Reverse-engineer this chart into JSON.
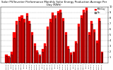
{
  "title": "Solar PV/Inverter Performance Monthly Solar Energy Production Average Per Day (KWh)",
  "bar_groups": [
    {
      "month": "Nov 08",
      "red": 1.5,
      "black": 1.2
    },
    {
      "month": "Dec 08",
      "red": 1.2,
      "black": 0.9
    },
    {
      "month": "Jan 09",
      "red": 2.0,
      "black": 1.5
    },
    {
      "month": "Feb 09",
      "red": 5.5,
      "black": 4.5
    },
    {
      "month": "Mar 09",
      "red": 7.5,
      "black": 6.8
    },
    {
      "month": "Apr 09",
      "red": 8.2,
      "black": 7.5
    },
    {
      "month": "May 09",
      "red": 8.5,
      "black": 8.0
    },
    {
      "month": "Jun 09",
      "red": 7.8,
      "black": 7.2
    },
    {
      "month": "Jul 09",
      "red": 8.8,
      "black": 8.3
    },
    {
      "month": "Aug 09",
      "red": 7.5,
      "black": 7.0
    },
    {
      "month": "Sep 09",
      "red": 5.5,
      "black": 5.0
    },
    {
      "month": "Oct 09",
      "red": 3.5,
      "black": 3.0
    },
    {
      "month": "Nov 09",
      "red": 2.2,
      "black": 1.8
    },
    {
      "month": "Dec 09",
      "red": 1.5,
      "black": 1.2
    },
    {
      "month": "Jan 10",
      "red": 2.5,
      "black": 2.0
    },
    {
      "month": "Feb 10",
      "red": 3.5,
      "black": 3.0
    },
    {
      "month": "Mar 10",
      "red": 6.5,
      "black": 6.0
    },
    {
      "month": "Apr 10",
      "red": 7.8,
      "black": 7.2
    },
    {
      "month": "May 10",
      "red": 9.0,
      "black": 8.5
    },
    {
      "month": "Jun 10",
      "red": 8.5,
      "black": 8.0
    },
    {
      "month": "Jul 10",
      "red": 9.2,
      "black": 8.8
    },
    {
      "month": "Aug 10",
      "red": 9.5,
      "black": 9.0
    },
    {
      "month": "Sep 10",
      "red": 8.0,
      "black": 7.5
    },
    {
      "month": "Oct 10",
      "red": 5.5,
      "black": 5.0
    },
    {
      "month": "Nov 10",
      "red": 3.0,
      "black": 2.5
    },
    {
      "month": "Dec 10",
      "red": 1.8,
      "black": 1.5
    },
    {
      "month": "Jan 11",
      "red": 2.0,
      "black": 1.8
    },
    {
      "month": "Feb 11",
      "red": 3.8,
      "black": 3.5
    },
    {
      "month": "Mar 11",
      "red": 7.0,
      "black": 6.5
    },
    {
      "month": "Apr 11",
      "red": 8.5,
      "black": 8.0
    },
    {
      "month": "May 11",
      "red": 9.5,
      "black": 9.0
    },
    {
      "month": "Jun 11",
      "red": 9.8,
      "black": 9.3
    },
    {
      "month": "Jul 11",
      "red": 5.5,
      "black": 5.0
    },
    {
      "month": "Aug 11",
      "red": 7.5,
      "black": 7.0
    },
    {
      "month": "Sep 11",
      "red": 6.0,
      "black": 5.5
    },
    {
      "month": "Oct 11",
      "red": 4.0,
      "black": 3.5
    },
    {
      "month": "Nov 11",
      "red": 8.0,
      "black": 7.5
    },
    {
      "month": "Dec 11",
      "red": 2.0,
      "black": 1.8
    }
  ],
  "ylim": [
    0,
    10
  ],
  "yticks": [
    1,
    2,
    3,
    4,
    5,
    6,
    7,
    8,
    9,
    10
  ],
  "red_color": "#ff0000",
  "black_color": "#000000",
  "bg_color": "#ffffff",
  "grid_color": "#aaaaaa",
  "title_fontsize": 2.8,
  "tick_fontsize": 2.5,
  "legend_labels": [
    "KWh/Day",
    "Pdc"
  ],
  "figsize": [
    1.6,
    1.0
  ],
  "dpi": 100
}
